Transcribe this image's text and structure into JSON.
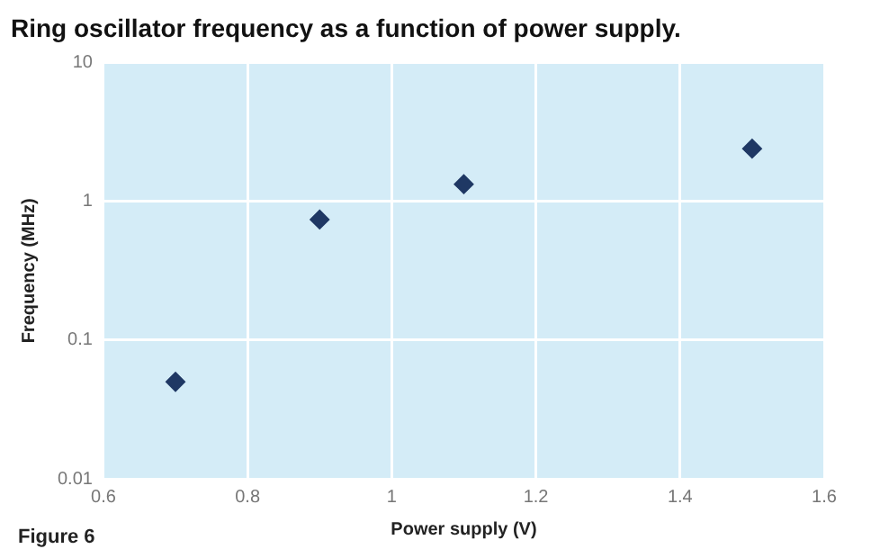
{
  "chart_data": {
    "type": "scatter",
    "title": "Ring oscillator frequency as a function of power supply.",
    "xlabel": "Power supply (V)",
    "ylabel": "Frequency (MHz)",
    "annotations": [
      "Figure 6"
    ],
    "x": [
      0.7,
      0.9,
      1.1,
      1.5
    ],
    "series": [
      {
        "color": "#1f3864",
        "values": [
          0.05,
          0.74,
          1.33,
          2.4
        ]
      }
    ],
    "log": "y",
    "xlim": [
      0.6,
      1.6
    ],
    "xticks": [
      0.6,
      0.8,
      1,
      1.2,
      1.4,
      1.6
    ],
    "ylim": [
      0.01,
      10
    ],
    "yticks": [
      0.01,
      0.1,
      1,
      10
    ],
    "grid": true,
    "marker": "diamond",
    "legend": false
  }
}
